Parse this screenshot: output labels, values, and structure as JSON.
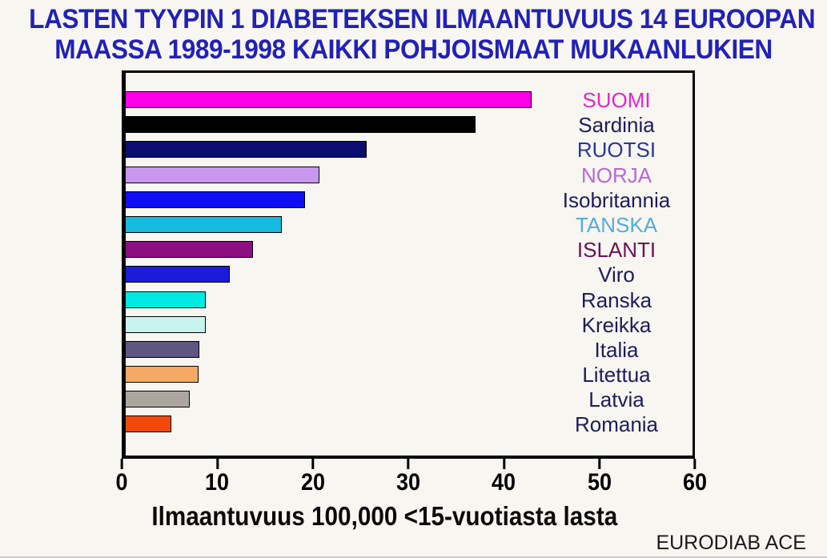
{
  "title": {
    "line1": "LASTEN TYYPIN 1 DIABETEKSEN ILMAANTUVUUS 14 EUROOPAN",
    "line2": "MAASSA 1989-1998 KAIKKI POHJOISMAAT MUKAANLUKIEN"
  },
  "footer": {
    "credit": "EURODIAB ACE"
  },
  "colors": {
    "title_text": "#2121B8",
    "country_label_default": "#1C1C5F",
    "axis_line": "#000000",
    "page_background": "#F8F6F0"
  },
  "chart_data": {
    "type": "bar",
    "orientation": "horizontal",
    "title": "LASTEN TYYPIN 1 DIABETEKSEN ILMAANTUVUUS 14 EUROOPAN MAASSA 1989-1998 KAIKKI POHJOISMAAT MUKAANLUKIEN",
    "xlabel": "Ilmaantuvuus 100,000 <15-vuotiasta lasta",
    "source": "EURODIAB ACE",
    "xlim": [
      0,
      60
    ],
    "xticks": [
      0,
      10,
      20,
      30,
      40,
      50,
      60
    ],
    "grid": false,
    "legend_position": "labels-beside-bars",
    "categories": [
      "SUOMI",
      "Sardinia",
      "RUOTSI",
      "NORJA",
      "Isobritannia",
      "TANSKA",
      "ISLANTI",
      "Viro",
      "Ranska",
      "Kreikka",
      "Italia",
      "Litettua",
      "Latvia",
      "Romania"
    ],
    "values": [
      43,
      37,
      25.5,
      20.5,
      19,
      16.5,
      13.5,
      11,
      8.5,
      8.5,
      7.8,
      7.7,
      6.8,
      4.8
    ],
    "bar_colors": [
      "#FB00E8",
      "#000000",
      "#0D0D70",
      "#C997EF",
      "#0E0EF8",
      "#16BADF",
      "#8C0F82",
      "#1B1BD8",
      "#00E9E1",
      "#C9F3EF",
      "#5D5781",
      "#F5A964",
      "#ADA69F",
      "#F1490B"
    ],
    "label_colors": [
      "#E625C8",
      "#1C1C5F",
      "#27379B",
      "#BA67DE",
      "#1C1C5F",
      "#54ACDE",
      "#6E1057",
      "#1C1C5F",
      "#1C1C5F",
      "#1C1C5F",
      "#1C1C5F",
      "#1C1C5F",
      "#1C1C5F",
      "#1C1C5F"
    ]
  }
}
